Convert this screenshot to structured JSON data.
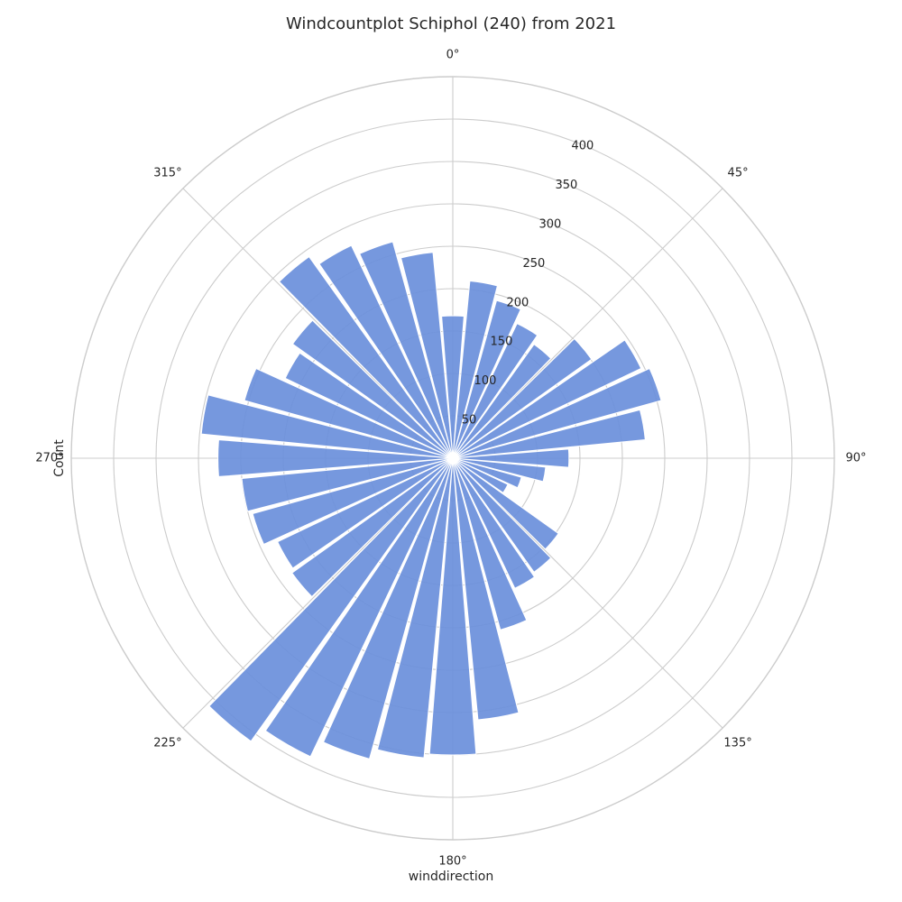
{
  "chart_data": {
    "type": "bar",
    "polar": true,
    "title": "Windcountplot Schiphol (240) from 2021",
    "xlabel": "winddirection",
    "ylabel": "Count",
    "angle_labels": [
      "0°",
      "45°",
      "90°",
      "135°",
      "180°",
      "225°",
      "270°",
      "315°"
    ],
    "radial_ticks": [
      50,
      100,
      150,
      200,
      250,
      300,
      350,
      400
    ],
    "rmax": 450,
    "grid": true,
    "bar_color": "#6a8fdb",
    "bar_width_deg": 9,
    "directions": [
      0,
      10,
      20,
      30,
      40,
      50,
      60,
      70,
      80,
      90,
      100,
      110,
      120,
      130,
      140,
      150,
      160,
      170,
      180,
      190,
      200,
      210,
      220,
      230,
      240,
      250,
      260,
      270,
      280,
      290,
      300,
      310,
      320,
      330,
      340,
      350
    ],
    "values": [
      168,
      210,
      193,
      176,
      165,
      201,
      246,
      255,
      228,
      137,
      110,
      84,
      72,
      153,
      165,
      170,
      210,
      310,
      350,
      355,
      368,
      390,
      410,
      233,
      229,
      245,
      250,
      277,
      298,
      255,
      219,
      232,
      292,
      278,
      265,
      244
    ]
  }
}
